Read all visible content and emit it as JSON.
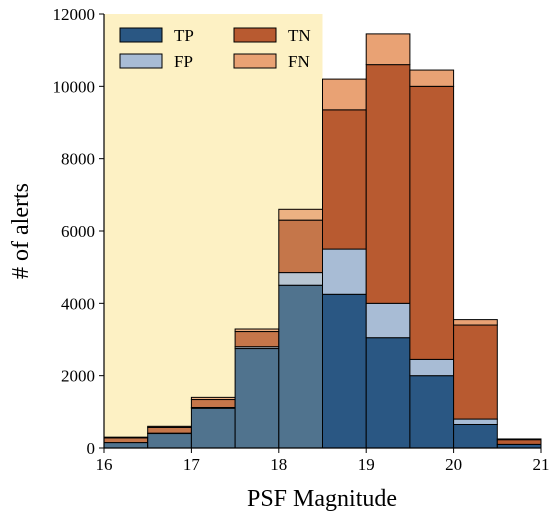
{
  "chart_data": {
    "type": "bar",
    "stacked": true,
    "bin_edges": [
      16,
      16.5,
      17,
      17.5,
      18,
      18.5,
      19,
      19.5,
      20,
      20.5,
      21
    ],
    "series": [
      {
        "name": "TP",
        "color": "#2a5783",
        "values": [
          150,
          400,
          1100,
          2750,
          4500,
          4250,
          3050,
          2000,
          650,
          100
        ]
      },
      {
        "name": "FP",
        "color": "#a8bcd5",
        "values": [
          0,
          10,
          20,
          50,
          350,
          1250,
          950,
          450,
          150,
          0
        ]
      },
      {
        "name": "TN",
        "color": "#b85a30",
        "values": [
          130,
          160,
          220,
          420,
          1450,
          3850,
          6600,
          7550,
          2600,
          130
        ]
      },
      {
        "name": "FN",
        "color": "#e9a274",
        "values": [
          20,
          30,
          60,
          70,
          300,
          850,
          850,
          450,
          150,
          20
        ]
      }
    ],
    "xlabel": "PSF Magnitude",
    "ylabel": "# of alerts",
    "xlim": [
      16,
      21
    ],
    "ylim": [
      0,
      12000
    ],
    "xticks": [
      "16",
      "17",
      "18",
      "19",
      "20",
      "21"
    ],
    "yticks": [
      "0",
      "2000",
      "4000",
      "6000",
      "8000",
      "10000",
      "12000"
    ],
    "highlight": {
      "x_range": [
        16,
        18.5
      ],
      "color": "#fdf1c4"
    },
    "legend": {
      "position": "top-left",
      "columns": 2,
      "order": [
        "TP",
        "TN",
        "FP",
        "FN"
      ]
    },
    "grid": false
  }
}
